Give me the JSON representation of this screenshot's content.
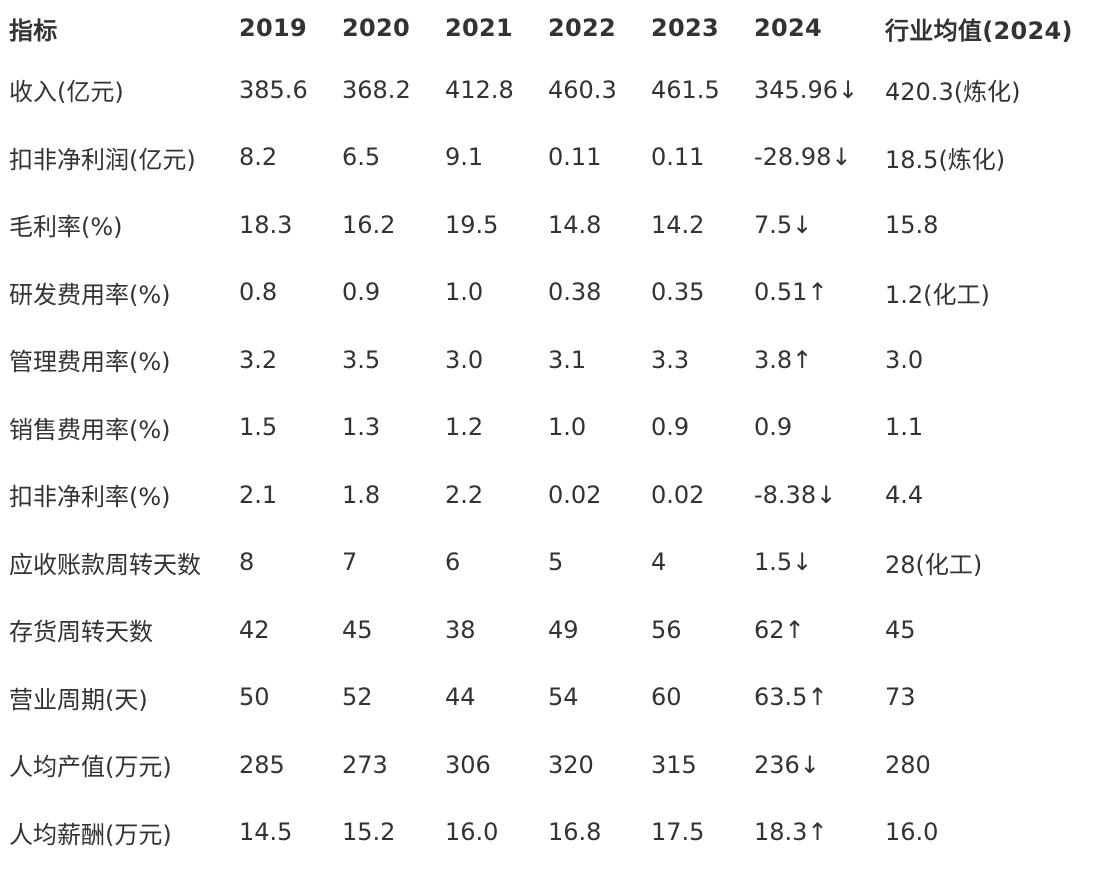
{
  "table": {
    "headers": [
      "指标",
      "2019",
      "2020",
      "2021",
      "2022",
      "2023",
      "2024",
      "行业均值(2024)"
    ],
    "rows": [
      [
        "收入(亿元)",
        "385.6",
        "368.2",
        "412.8",
        "460.3",
        "461.5",
        "345.96↓",
        "420.3(炼化)"
      ],
      [
        "扣非净利润(亿元)",
        "8.2",
        "6.5",
        "9.1",
        "0.11",
        "0.11",
        "-28.98↓",
        "18.5(炼化)"
      ],
      [
        "毛利率(%)",
        "18.3",
        "16.2",
        "19.5",
        "14.8",
        "14.2",
        "7.5↓",
        "15.8"
      ],
      [
        "研发费用率(%)",
        "0.8",
        "0.9",
        "1.0",
        "0.38",
        "0.35",
        "0.51↑",
        "1.2(化工)"
      ],
      [
        "管理费用率(%)",
        "3.2",
        "3.5",
        "3.0",
        "3.1",
        "3.3",
        "3.8↑",
        "3.0"
      ],
      [
        "销售费用率(%)",
        "1.5",
        "1.3",
        "1.2",
        "1.0",
        "0.9",
        "0.9",
        "1.1"
      ],
      [
        "扣非净利率(%)",
        "2.1",
        "1.8",
        "2.2",
        "0.02",
        "0.02",
        "-8.38↓",
        "4.4"
      ],
      [
        "应收账款周转天数",
        "8",
        "7",
        "6",
        "5",
        "4",
        "1.5↓",
        "28(化工)"
      ],
      [
        "存货周转天数",
        "42",
        "45",
        "38",
        "49",
        "56",
        "62↑",
        "45"
      ],
      [
        "营业周期(天)",
        "50",
        "52",
        "44",
        "54",
        "60",
        "63.5↑",
        "73"
      ],
      [
        "人均产值(万元)",
        "285",
        "273",
        "306",
        "320",
        "315",
        "236↓",
        "280"
      ],
      [
        "人均薪酬(万元)",
        "14.5",
        "15.2",
        "16.0",
        "16.8",
        "17.5",
        "18.3↑",
        "16.0"
      ]
    ]
  }
}
